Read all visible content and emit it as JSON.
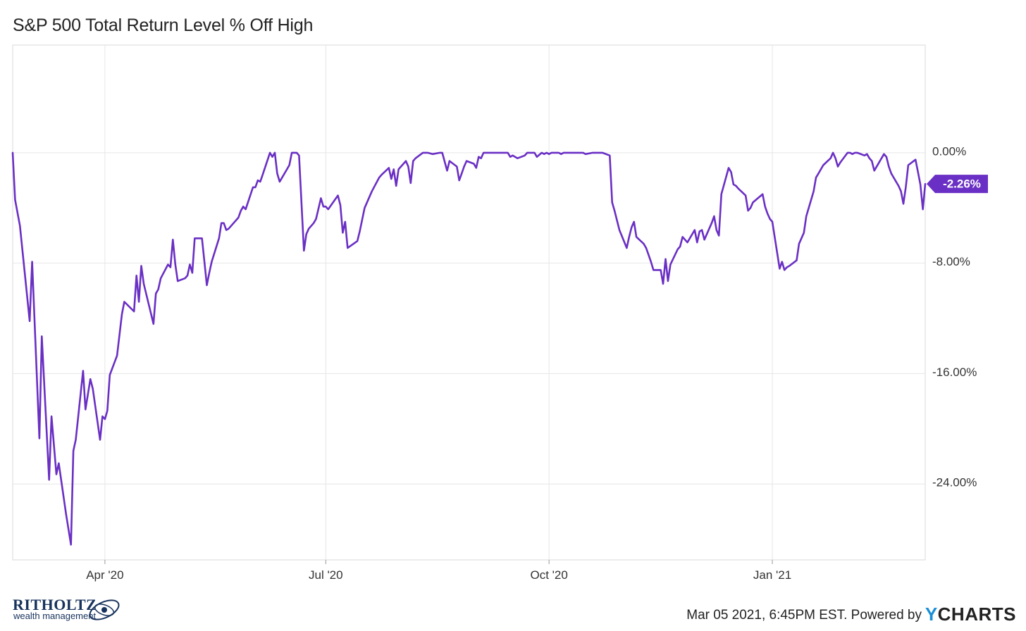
{
  "title": "S&P 500 Total Return Level % Off High",
  "footer": {
    "timestamp": "Mar 05 2021, 6:45PM EST. Powered by",
    "brand_y": "Y",
    "brand_rest": "CHARTS"
  },
  "logo": {
    "name": "RITHOLTZ",
    "sub": "wealth management"
  },
  "colors": {
    "line": "#6a2fc4",
    "badge": "#6a2fc4",
    "grid": "#e6e6e6",
    "axis_text": "#333333"
  },
  "chart_data": {
    "type": "line",
    "title": "S&P 500 Total Return Level % Off High",
    "ylim": [
      -29.5,
      7.8
    ],
    "y_ticks": [
      0,
      -8,
      -16,
      -24
    ],
    "y_tick_labels": [
      "0.00%",
      "-8.00%",
      "-16.00%",
      "-24.00%"
    ],
    "x_tick_labels": [
      "Apr '20",
      "Jul '20",
      "Oct '20",
      "Jan '21"
    ],
    "x_tick_dates": [
      "2020-04-01",
      "2020-07-01",
      "2020-10-01",
      "2021-01-01"
    ],
    "x_range": [
      "2020-02-23",
      "2021-03-05"
    ],
    "grid": true,
    "last_value_label": "-2.26%",
    "series": [
      {
        "values": [
          [
            "2020-02-23",
            0.0
          ],
          [
            "2020-02-24",
            -3.4
          ],
          [
            "2020-02-26",
            -5.3
          ],
          [
            "2020-03-01",
            -12.2
          ],
          [
            "2020-03-02",
            -7.9
          ],
          [
            "2020-03-05",
            -20.7
          ],
          [
            "2020-03-06",
            -13.3
          ],
          [
            "2020-03-09",
            -23.7
          ],
          [
            "2020-03-10",
            -19.1
          ],
          [
            "2020-03-12",
            -23.3
          ],
          [
            "2020-03-13",
            -22.5
          ],
          [
            "2020-03-16",
            -26.2
          ],
          [
            "2020-03-18",
            -28.4
          ],
          [
            "2020-03-19",
            -21.6
          ],
          [
            "2020-03-20",
            -20.8
          ],
          [
            "2020-03-23",
            -15.8
          ],
          [
            "2020-03-24",
            -18.6
          ],
          [
            "2020-03-26",
            -16.4
          ],
          [
            "2020-03-27",
            -17.1
          ],
          [
            "2020-03-30",
            -20.8
          ],
          [
            "2020-03-31",
            -19.1
          ],
          [
            "2020-04-01",
            -19.3
          ],
          [
            "2020-04-02",
            -18.7
          ],
          [
            "2020-04-03",
            -16.1
          ],
          [
            "2020-04-06",
            -14.7
          ],
          [
            "2020-04-08",
            -11.7
          ],
          [
            "2020-04-09",
            -10.8
          ],
          [
            "2020-04-13",
            -11.5
          ],
          [
            "2020-04-14",
            -8.9
          ],
          [
            "2020-04-15",
            -10.8
          ],
          [
            "2020-04-16",
            -8.2
          ],
          [
            "2020-04-17",
            -9.5
          ],
          [
            "2020-04-21",
            -12.4
          ],
          [
            "2020-04-22",
            -10.2
          ],
          [
            "2020-04-23",
            -9.9
          ],
          [
            "2020-04-24",
            -9.1
          ],
          [
            "2020-04-27",
            -8.1
          ],
          [
            "2020-04-28",
            -8.3
          ],
          [
            "2020-04-29",
            -6.3
          ],
          [
            "2020-04-30",
            -8.1
          ],
          [
            "2020-05-01",
            -9.3
          ],
          [
            "2020-05-04",
            -9.1
          ],
          [
            "2020-05-05",
            -8.9
          ],
          [
            "2020-05-06",
            -8.1
          ],
          [
            "2020-05-07",
            -8.7
          ],
          [
            "2020-05-08",
            -6.2
          ],
          [
            "2020-05-11",
            -6.2
          ],
          [
            "2020-05-12",
            -7.9
          ],
          [
            "2020-05-13",
            -9.6
          ],
          [
            "2020-05-14",
            -8.7
          ],
          [
            "2020-05-15",
            -7.9
          ],
          [
            "2020-05-18",
            -6.2
          ],
          [
            "2020-05-19",
            -5.1
          ],
          [
            "2020-05-20",
            -5.1
          ],
          [
            "2020-05-21",
            -5.6
          ],
          [
            "2020-05-22",
            -5.5
          ],
          [
            "2020-05-26",
            -4.7
          ],
          [
            "2020-05-27",
            -4.2
          ],
          [
            "2020-05-28",
            -3.9
          ],
          [
            "2020-05-29",
            -4.1
          ],
          [
            "2020-06-01",
            -2.5
          ],
          [
            "2020-06-02",
            -2.5
          ],
          [
            "2020-06-03",
            -2.0
          ],
          [
            "2020-06-04",
            -2.1
          ],
          [
            "2020-06-05",
            -1.6
          ],
          [
            "2020-06-08",
            0.0
          ],
          [
            "2020-06-09",
            -0.3
          ],
          [
            "2020-06-10",
            0.0
          ],
          [
            "2020-06-11",
            -1.5
          ],
          [
            "2020-06-12",
            -2.1
          ],
          [
            "2020-06-15",
            -1.2
          ],
          [
            "2020-06-16",
            -0.9
          ],
          [
            "2020-06-17",
            0.0
          ],
          [
            "2020-06-18",
            0.0
          ],
          [
            "2020-06-19",
            0.0
          ],
          [
            "2020-06-20",
            -0.2
          ],
          [
            "2020-06-22",
            -7.1
          ],
          [
            "2020-06-23",
            -5.9
          ],
          [
            "2020-06-24",
            -5.5
          ],
          [
            "2020-06-26",
            -5.1
          ],
          [
            "2020-06-27",
            -4.8
          ],
          [
            "2020-06-29",
            -3.3
          ],
          [
            "2020-06-30",
            -3.9
          ],
          [
            "2020-07-01",
            -3.9
          ],
          [
            "2020-07-02",
            -4.1
          ],
          [
            "2020-07-06",
            -3.1
          ],
          [
            "2020-07-07",
            -3.8
          ],
          [
            "2020-07-08",
            -5.8
          ],
          [
            "2020-07-09",
            -5.0
          ],
          [
            "2020-07-10",
            -6.9
          ],
          [
            "2020-07-14",
            -6.4
          ],
          [
            "2020-07-15",
            -5.7
          ],
          [
            "2020-07-17",
            -4.0
          ],
          [
            "2020-07-20",
            -2.8
          ],
          [
            "2020-07-23",
            -1.8
          ],
          [
            "2020-07-24",
            -1.6
          ],
          [
            "2020-07-27",
            -1.1
          ],
          [
            "2020-07-28",
            -1.9
          ],
          [
            "2020-07-29",
            -1.2
          ],
          [
            "2020-07-30",
            -2.4
          ],
          [
            "2020-07-31",
            -1.2
          ],
          [
            "2020-08-03",
            -0.6
          ],
          [
            "2020-08-04",
            -1.0
          ],
          [
            "2020-08-05",
            -2.2
          ],
          [
            "2020-08-06",
            -0.6
          ],
          [
            "2020-08-07",
            -0.4
          ],
          [
            "2020-08-10",
            0.0
          ],
          [
            "2020-08-11",
            0.0
          ],
          [
            "2020-08-12",
            0.0
          ],
          [
            "2020-08-14",
            -0.1
          ],
          [
            "2020-08-17",
            0.0
          ],
          [
            "2020-08-18",
            0.0
          ],
          [
            "2020-08-20",
            -1.3
          ],
          [
            "2020-08-21",
            -0.6
          ],
          [
            "2020-08-24",
            -1.0
          ],
          [
            "2020-08-25",
            -2.0
          ],
          [
            "2020-08-26",
            -1.5
          ],
          [
            "2020-08-27",
            -1.0
          ],
          [
            "2020-08-28",
            -0.6
          ],
          [
            "2020-08-31",
            -0.8
          ],
          [
            "2020-09-01",
            -1.1
          ],
          [
            "2020-09-02",
            -0.3
          ],
          [
            "2020-09-03",
            -0.4
          ],
          [
            "2020-09-04",
            0.0
          ],
          [
            "2020-09-08",
            0.0
          ],
          [
            "2020-09-09",
            0.0
          ],
          [
            "2020-09-10",
            0.0
          ],
          [
            "2020-09-11",
            0.0
          ],
          [
            "2020-09-14",
            0.0
          ],
          [
            "2020-09-15",
            -0.3
          ],
          [
            "2020-09-16",
            -0.2
          ],
          [
            "2020-09-18",
            -0.4
          ],
          [
            "2020-09-21",
            -0.2
          ],
          [
            "2020-09-22",
            0.0
          ],
          [
            "2020-09-23",
            0.0
          ],
          [
            "2020-09-24",
            0.0
          ],
          [
            "2020-09-25",
            0.0
          ],
          [
            "2020-09-26",
            -0.3
          ],
          [
            "2020-09-28",
            0.0
          ],
          [
            "2020-09-29",
            -0.1
          ],
          [
            "2020-09-30",
            0.0
          ],
          [
            "2020-10-01",
            -0.1
          ],
          [
            "2020-10-02",
            0.0
          ],
          [
            "2020-10-05",
            0.0
          ],
          [
            "2020-10-06",
            -0.1
          ],
          [
            "2020-10-07",
            0.0
          ],
          [
            "2020-10-08",
            0.0
          ],
          [
            "2020-10-09",
            0.0
          ],
          [
            "2020-10-12",
            0.0
          ],
          [
            "2020-10-13",
            0.0
          ],
          [
            "2020-10-14",
            0.0
          ],
          [
            "2020-10-15",
            0.0
          ],
          [
            "2020-10-16",
            -0.1
          ],
          [
            "2020-10-19",
            0.0
          ],
          [
            "2020-10-20",
            0.0
          ],
          [
            "2020-10-21",
            0.0
          ],
          [
            "2020-10-22",
            0.0
          ],
          [
            "2020-10-23",
            0.0
          ],
          [
            "2020-10-26",
            -0.2
          ],
          [
            "2020-10-27",
            -3.6
          ],
          [
            "2020-10-28",
            -4.2
          ],
          [
            "2020-10-30",
            -5.6
          ],
          [
            "2020-11-02",
            -6.9
          ],
          [
            "2020-11-03",
            -6.1
          ],
          [
            "2020-11-04",
            -5.4
          ],
          [
            "2020-11-05",
            -5.0
          ],
          [
            "2020-11-06",
            -6.1
          ],
          [
            "2020-11-09",
            -6.6
          ],
          [
            "2020-11-10",
            -6.9
          ],
          [
            "2020-11-11",
            -7.4
          ],
          [
            "2020-11-12",
            -7.9
          ],
          [
            "2020-11-13",
            -8.5
          ],
          [
            "2020-11-16",
            -8.5
          ],
          [
            "2020-11-17",
            -9.5
          ],
          [
            "2020-11-18",
            -7.7
          ],
          [
            "2020-11-19",
            -9.3
          ],
          [
            "2020-11-20",
            -8.1
          ],
          [
            "2020-11-23",
            -7.0
          ],
          [
            "2020-11-24",
            -6.8
          ],
          [
            "2020-11-25",
            -6.1
          ],
          [
            "2020-11-27",
            -6.5
          ],
          [
            "2020-11-30",
            -5.6
          ],
          [
            "2020-12-01",
            -6.5
          ],
          [
            "2020-12-02",
            -5.7
          ],
          [
            "2020-12-03",
            -5.6
          ],
          [
            "2020-12-04",
            -6.3
          ],
          [
            "2020-12-07",
            -5.1
          ],
          [
            "2020-12-08",
            -4.6
          ],
          [
            "2020-12-09",
            -5.6
          ],
          [
            "2020-12-10",
            -6.0
          ],
          [
            "2020-12-11",
            -3.0
          ],
          [
            "2020-12-14",
            -1.1
          ],
          [
            "2020-12-15",
            -1.4
          ],
          [
            "2020-12-16",
            -2.3
          ],
          [
            "2020-12-17",
            -2.4
          ],
          [
            "2020-12-18",
            -2.6
          ],
          [
            "2020-12-21",
            -3.1
          ],
          [
            "2020-12-22",
            -4.2
          ],
          [
            "2020-12-23",
            -4.0
          ],
          [
            "2020-12-24",
            -3.6
          ],
          [
            "2020-12-28",
            -3.0
          ],
          [
            "2020-12-29",
            -3.9
          ],
          [
            "2020-12-30",
            -4.4
          ],
          [
            "2020-12-31",
            -4.8
          ],
          [
            "2021-01-01",
            -5.0
          ],
          [
            "2021-01-04",
            -8.4
          ],
          [
            "2021-01-05",
            -7.9
          ],
          [
            "2021-01-06",
            -8.5
          ],
          [
            "2021-01-07",
            -8.3
          ],
          [
            "2021-01-08",
            -8.2
          ],
          [
            "2021-01-11",
            -7.8
          ],
          [
            "2021-01-12",
            -6.6
          ],
          [
            "2021-01-14",
            -5.8
          ],
          [
            "2021-01-15",
            -4.6
          ],
          [
            "2021-01-18",
            -2.8
          ],
          [
            "2021-01-19",
            -1.8
          ],
          [
            "2021-01-20",
            -1.5
          ],
          [
            "2021-01-21",
            -1.2
          ],
          [
            "2021-01-22",
            -0.9
          ],
          [
            "2021-01-25",
            -0.4
          ],
          [
            "2021-01-26",
            0.0
          ],
          [
            "2021-01-27",
            -0.4
          ],
          [
            "2021-01-28",
            -1.0
          ],
          [
            "2021-01-29",
            -0.7
          ],
          [
            "2021-02-01",
            0.0
          ],
          [
            "2021-02-02",
            0.0
          ],
          [
            "2021-02-03",
            -0.1
          ],
          [
            "2021-02-04",
            0.0
          ],
          [
            "2021-02-05",
            0.0
          ],
          [
            "2021-02-08",
            -0.2
          ],
          [
            "2021-02-09",
            -0.1
          ],
          [
            "2021-02-10",
            -0.4
          ],
          [
            "2021-02-11",
            -0.6
          ],
          [
            "2021-02-12",
            -1.3
          ],
          [
            "2021-02-16",
            -0.1
          ],
          [
            "2021-02-17",
            -0.3
          ],
          [
            "2021-02-18",
            -1.0
          ],
          [
            "2021-02-19",
            -1.5
          ],
          [
            "2021-02-22",
            -2.4
          ],
          [
            "2021-02-23",
            -2.8
          ],
          [
            "2021-02-24",
            -3.7
          ],
          [
            "2021-02-25",
            -2.5
          ],
          [
            "2021-02-26",
            -0.9
          ],
          [
            "2021-03-01",
            -0.5
          ],
          [
            "2021-03-02",
            -1.4
          ],
          [
            "2021-03-03",
            -2.3
          ],
          [
            "2021-03-04",
            -4.1
          ],
          [
            "2021-03-05",
            -2.26
          ]
        ]
      }
    ]
  }
}
